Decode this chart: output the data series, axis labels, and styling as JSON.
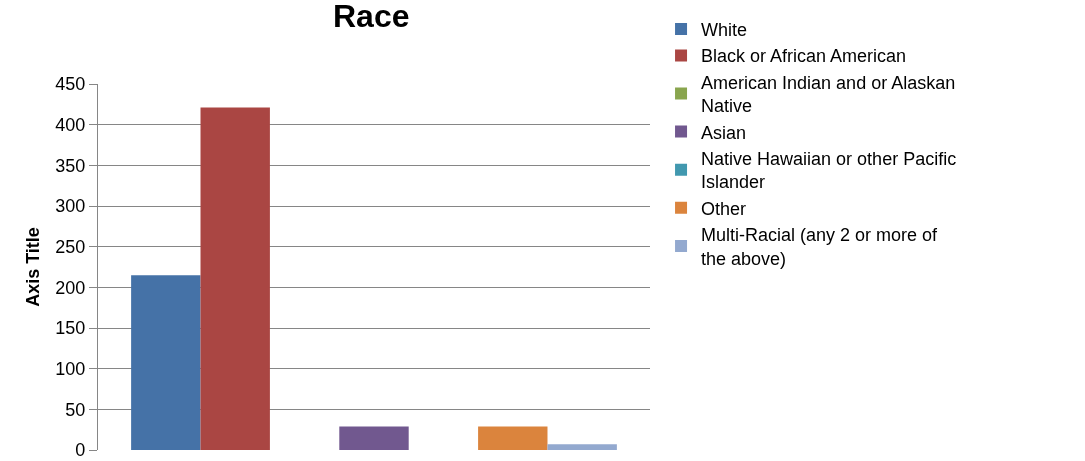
{
  "chart_data": {
    "type": "bar",
    "title": "Race",
    "ylabel": "Axis Title",
    "categories": [
      null
    ],
    "series": [
      {
        "name": "White",
        "color": "#4572a7",
        "values": [
          215
        ]
      },
      {
        "name": "Black or African American",
        "color": "#aa4643",
        "values": [
          421
        ]
      },
      {
        "name": "American Indian and or Alaskan Native",
        "color": "#89a54e",
        "values": [
          0
        ]
      },
      {
        "name": "Asian",
        "color": "#71588f",
        "values": [
          29
        ]
      },
      {
        "name": "Native Hawaiian or other Pacific Islander",
        "color": "#4198af",
        "values": [
          0
        ]
      },
      {
        "name": "Other",
        "color": "#db843d",
        "values": [
          29
        ]
      },
      {
        "name": "Multi-Racial (any 2 or more of the above)",
        "color": "#93a9cf",
        "values": [
          7
        ]
      }
    ],
    "ylim": [
      0,
      450
    ],
    "yticks": [
      0,
      50,
      100,
      150,
      200,
      250,
      300,
      350,
      400,
      450
    ],
    "grid": "y",
    "legend": "right"
  }
}
